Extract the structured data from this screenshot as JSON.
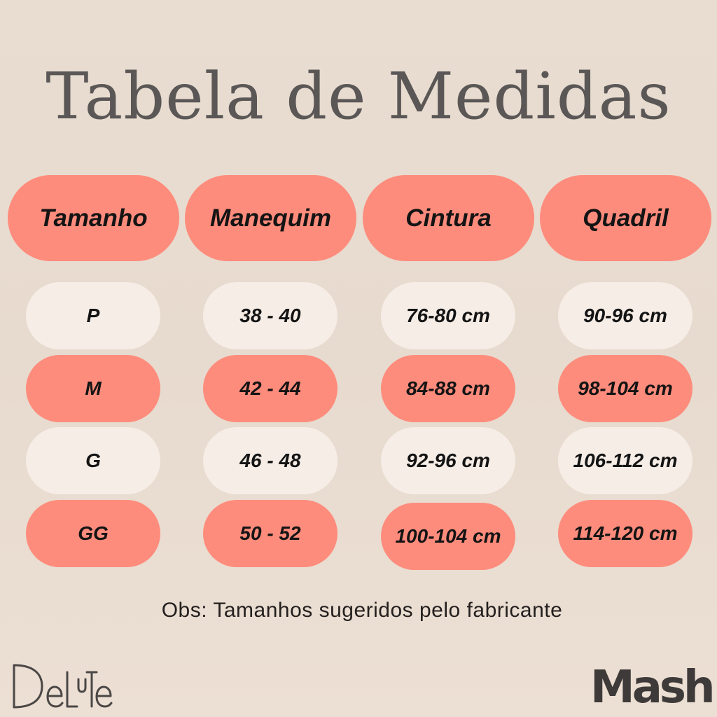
{
  "title": "Tabela de Medidas",
  "colors": {
    "salmon": "#fe8c7c",
    "cream": "#f6ede6",
    "text": "#141414",
    "brand_dot": "#ef4a4a"
  },
  "table": {
    "headers": [
      "Tamanho",
      "Manequim",
      "Cintura",
      "Quadril"
    ],
    "rows": [
      [
        "P",
        "38 - 40",
        "76-80 cm",
        "90-96 cm"
      ],
      [
        "M",
        "42 - 44",
        "84-88 cm",
        "98-104 cm"
      ],
      [
        "G",
        "46 - 48",
        "92-96 cm",
        "106-112 cm"
      ],
      [
        "GG",
        "50 - 52",
        "100-104 cm",
        "114-120 cm"
      ]
    ]
  },
  "note": "Obs: Tamanhos sugeridos pelo fabricante",
  "logos": {
    "left": "Delute",
    "right": "Mash",
    "right_dot": "."
  }
}
